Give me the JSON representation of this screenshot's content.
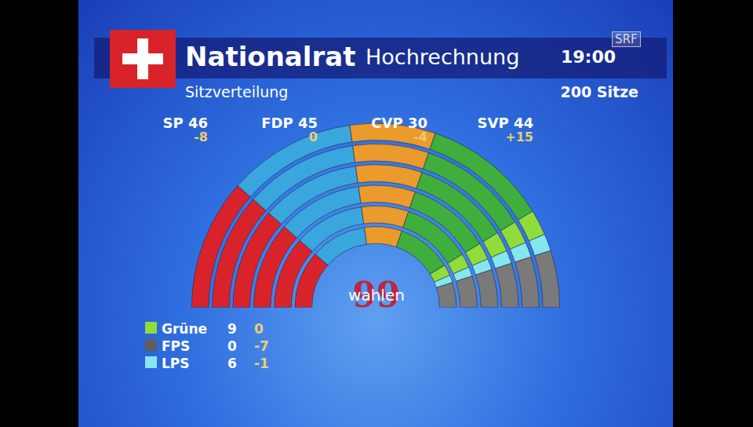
{
  "header": {
    "title": "Nationalrat",
    "subtitle": "Hochrechnung",
    "time": "19:00",
    "caption": "Sitzverteilung",
    "total_label": "200 Sitze",
    "channel": "SRF",
    "logo_text": "wahlen",
    "logo_number": "99"
  },
  "chart_data": {
    "type": "parliament",
    "total": 200,
    "categories": [
      "SP",
      "FDP",
      "CVP",
      "SVP",
      "Grüne",
      "FPS",
      "LPS",
      null
    ],
    "values": [
      46,
      45,
      30,
      44,
      9,
      0,
      6,
      20
    ],
    "changes": [
      -8,
      0,
      -4,
      15,
      0,
      -7,
      -1,
      null
    ],
    "change_labels": [
      "-8",
      "0",
      "-4",
      "+15",
      "0",
      "-7",
      "-1",
      null
    ],
    "colors": [
      "#d9232b",
      "#3aa6de",
      "#eb9a2c",
      "#3fae3c",
      "#8fdc3a",
      "#5e5e5e",
      "#86e6ee",
      "#7a7a7a"
    ],
    "data_labels": false,
    "legend": "bottom left"
  }
}
